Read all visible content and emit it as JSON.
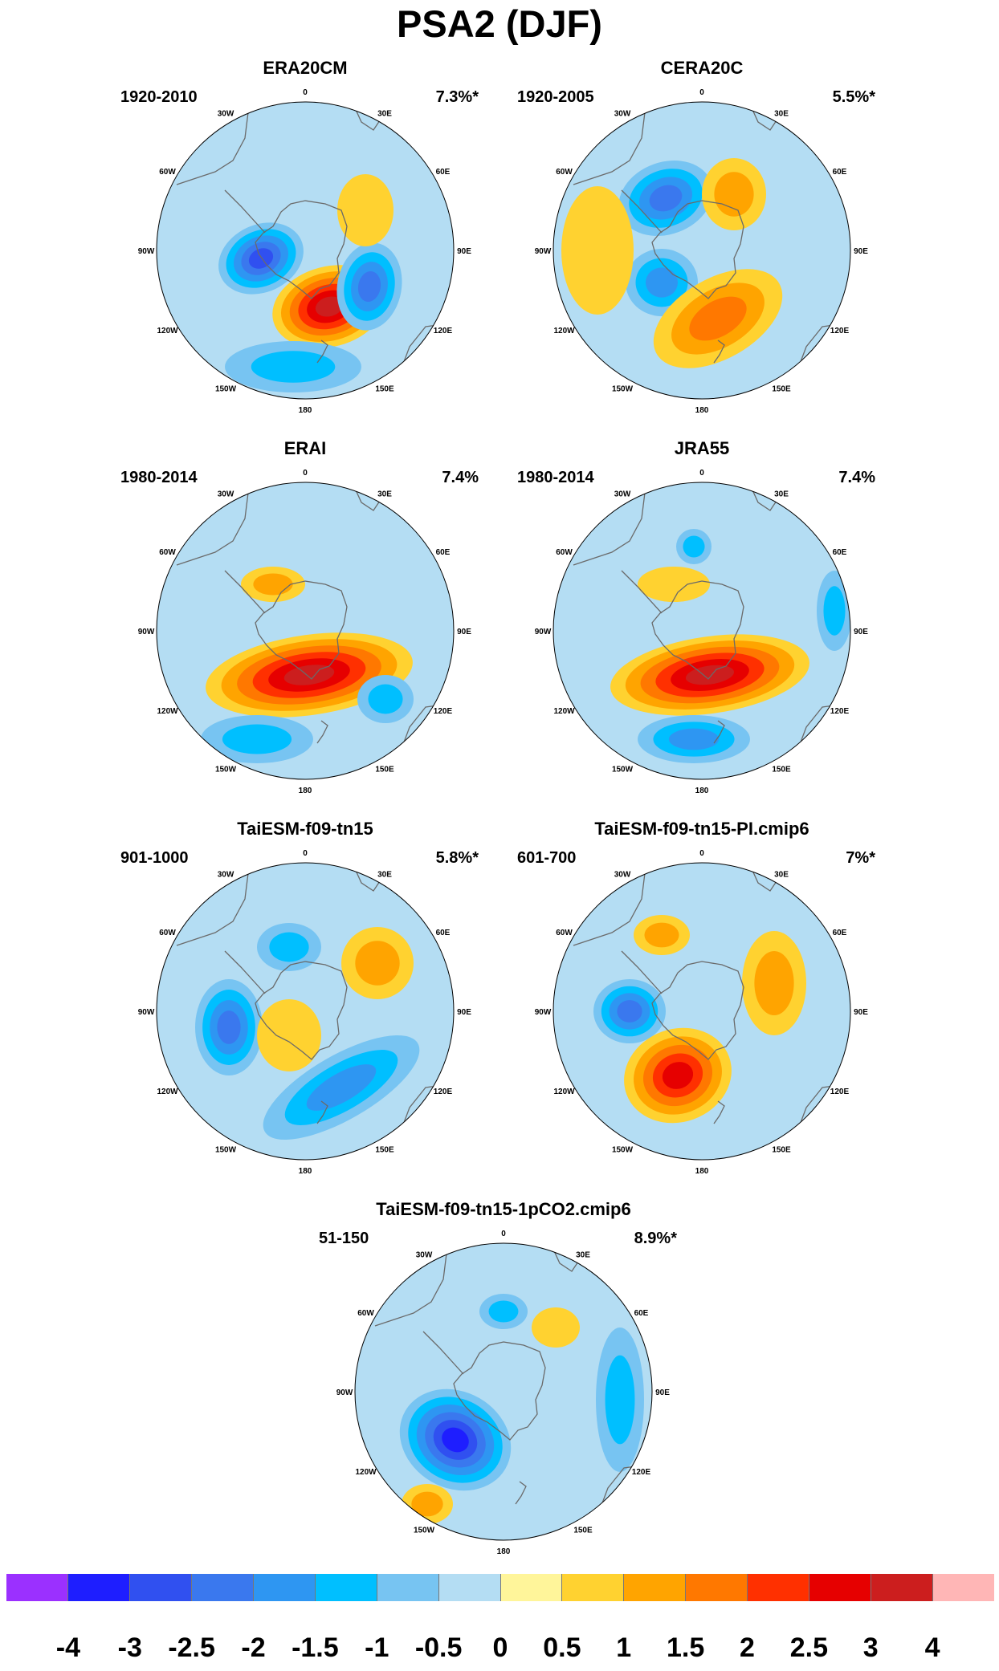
{
  "title": "PSA2 (DJF)",
  "lon_labels": [
    "0",
    "30E",
    "60E",
    "90E",
    "120E",
    "150E",
    "180",
    "150W",
    "120W",
    "90W",
    "60W",
    "30W"
  ],
  "panels": [
    {
      "title": "ERA20CM",
      "period": "1920-2010",
      "variance": "7.3%*",
      "features": [
        {
          "dx": -55,
          "dy": 10,
          "rx": 55,
          "ry": 42,
          "rot": -25,
          "level": -2.5
        },
        {
          "dx": 30,
          "dy": 70,
          "rx": 72,
          "ry": 50,
          "rot": -15,
          "level": 3
        },
        {
          "dx": 80,
          "dy": 45,
          "rx": 40,
          "ry": 55,
          "rot": 10,
          "level": -2
        },
        {
          "dx": 75,
          "dy": -50,
          "rx": 35,
          "ry": 45,
          "rot": 0,
          "level": 0.5
        },
        {
          "dx": -15,
          "dy": 145,
          "rx": 85,
          "ry": 32,
          "rot": 0,
          "level": -1
        }
      ]
    },
    {
      "title": "CERA20C",
      "period": "1920-2005",
      "variance": "5.5%*",
      "features": [
        {
          "dx": -45,
          "dy": -65,
          "rx": 60,
          "ry": 45,
          "rot": -20,
          "level": -2
        },
        {
          "dx": -50,
          "dy": 40,
          "rx": 45,
          "ry": 42,
          "rot": 0,
          "level": -1.5
        },
        {
          "dx": 20,
          "dy": 85,
          "rx": 88,
          "ry": 50,
          "rot": -30,
          "level": 1.5
        },
        {
          "dx": 40,
          "dy": -70,
          "rx": 40,
          "ry": 45,
          "rot": 0,
          "level": 1
        },
        {
          "dx": -130,
          "dy": 0,
          "rx": 45,
          "ry": 80,
          "rot": 0,
          "level": 0.5
        }
      ]
    },
    {
      "title": "ERAI",
      "period": "1980-2014",
      "variance": "7.4%",
      "features": [
        {
          "dx": 5,
          "dy": 55,
          "rx": 130,
          "ry": 50,
          "rot": -8,
          "level": 3
        },
        {
          "dx": -40,
          "dy": -58,
          "rx": 40,
          "ry": 22,
          "rot": 0,
          "level": 1
        },
        {
          "dx": -60,
          "dy": 135,
          "rx": 70,
          "ry": 30,
          "rot": 0,
          "level": -1
        },
        {
          "dx": 100,
          "dy": 85,
          "rx": 35,
          "ry": 30,
          "rot": 0,
          "level": -1
        }
      ]
    },
    {
      "title": "JRA55",
      "period": "1980-2014",
      "variance": "7.4%",
      "features": [
        {
          "dx": 10,
          "dy": 55,
          "rx": 125,
          "ry": 48,
          "rot": -8,
          "level": 3
        },
        {
          "dx": -35,
          "dy": -58,
          "rx": 45,
          "ry": 22,
          "rot": 0,
          "level": 0.5
        },
        {
          "dx": -10,
          "dy": 135,
          "rx": 70,
          "ry": 30,
          "rot": 0,
          "level": -1.5
        },
        {
          "dx": 165,
          "dy": -25,
          "rx": 22,
          "ry": 50,
          "rot": 0,
          "level": -1
        },
        {
          "dx": -10,
          "dy": -105,
          "rx": 22,
          "ry": 22,
          "rot": 0,
          "level": -1
        }
      ]
    },
    {
      "title": "TaiESM-f09-tn15",
      "period": "901-1000",
      "variance": "5.8%*",
      "features": [
        {
          "dx": -95,
          "dy": 20,
          "rx": 42,
          "ry": 60,
          "rot": 0,
          "level": -2
        },
        {
          "dx": 90,
          "dy": -60,
          "rx": 45,
          "ry": 45,
          "rot": 0,
          "level": 1
        },
        {
          "dx": 45,
          "dy": 95,
          "rx": 110,
          "ry": 40,
          "rot": -30,
          "level": -1.5
        },
        {
          "dx": -20,
          "dy": 30,
          "rx": 40,
          "ry": 45,
          "rot": 0,
          "level": 0.5
        },
        {
          "dx": -20,
          "dy": -80,
          "rx": 40,
          "ry": 30,
          "rot": 0,
          "level": -1
        }
      ]
    },
    {
      "title": "TaiESM-f09-tn15-PI.cmip6",
      "period": "601-700",
      "variance": "7%*",
      "features": [
        {
          "dx": -90,
          "dy": 0,
          "rx": 45,
          "ry": 40,
          "rot": 0,
          "level": -2
        },
        {
          "dx": -30,
          "dy": 80,
          "rx": 68,
          "ry": 58,
          "rot": -20,
          "level": 2.5
        },
        {
          "dx": 90,
          "dy": -35,
          "rx": 40,
          "ry": 65,
          "rot": 0,
          "level": 1
        },
        {
          "dx": -50,
          "dy": -95,
          "rx": 35,
          "ry": 25,
          "rot": 0,
          "level": 1
        }
      ]
    },
    {
      "title": "TaiESM-f09-tn15-1pCO2.cmip6",
      "period": "51-150",
      "variance": "8.9%*",
      "features": [
        {
          "dx": -60,
          "dy": 60,
          "rx": 72,
          "ry": 60,
          "rot": 30,
          "level": -3
        },
        {
          "dx": -95,
          "dy": 140,
          "rx": 32,
          "ry": 25,
          "rot": 0,
          "level": 1
        },
        {
          "dx": 0,
          "dy": -100,
          "rx": 30,
          "ry": 22,
          "rot": 0,
          "level": -1
        },
        {
          "dx": 145,
          "dy": 10,
          "rx": 30,
          "ry": 90,
          "rot": 0,
          "level": -1
        },
        {
          "dx": 65,
          "dy": -80,
          "rx": 30,
          "ry": 25,
          "rot": 0,
          "level": 0.5
        }
      ]
    }
  ],
  "colorbar": {
    "labels": [
      "-4",
      "-3",
      "-2.5",
      "-2",
      "-1.5",
      "-1",
      "-0.5",
      "0",
      "0.5",
      "1",
      "1.5",
      "2",
      "2.5",
      "3",
      "4"
    ],
    "colors": [
      "#9B30FF",
      "#1E1EFF",
      "#3050F0",
      "#3A78EE",
      "#2E96F2",
      "#00BFFF",
      "#77C4F2",
      "#B4DDF3",
      "#FFF59A",
      "#FFD230",
      "#FFA400",
      "#FF7800",
      "#FF3000",
      "#E60000",
      "#CC1E1E",
      "#FFB6B6"
    ]
  }
}
